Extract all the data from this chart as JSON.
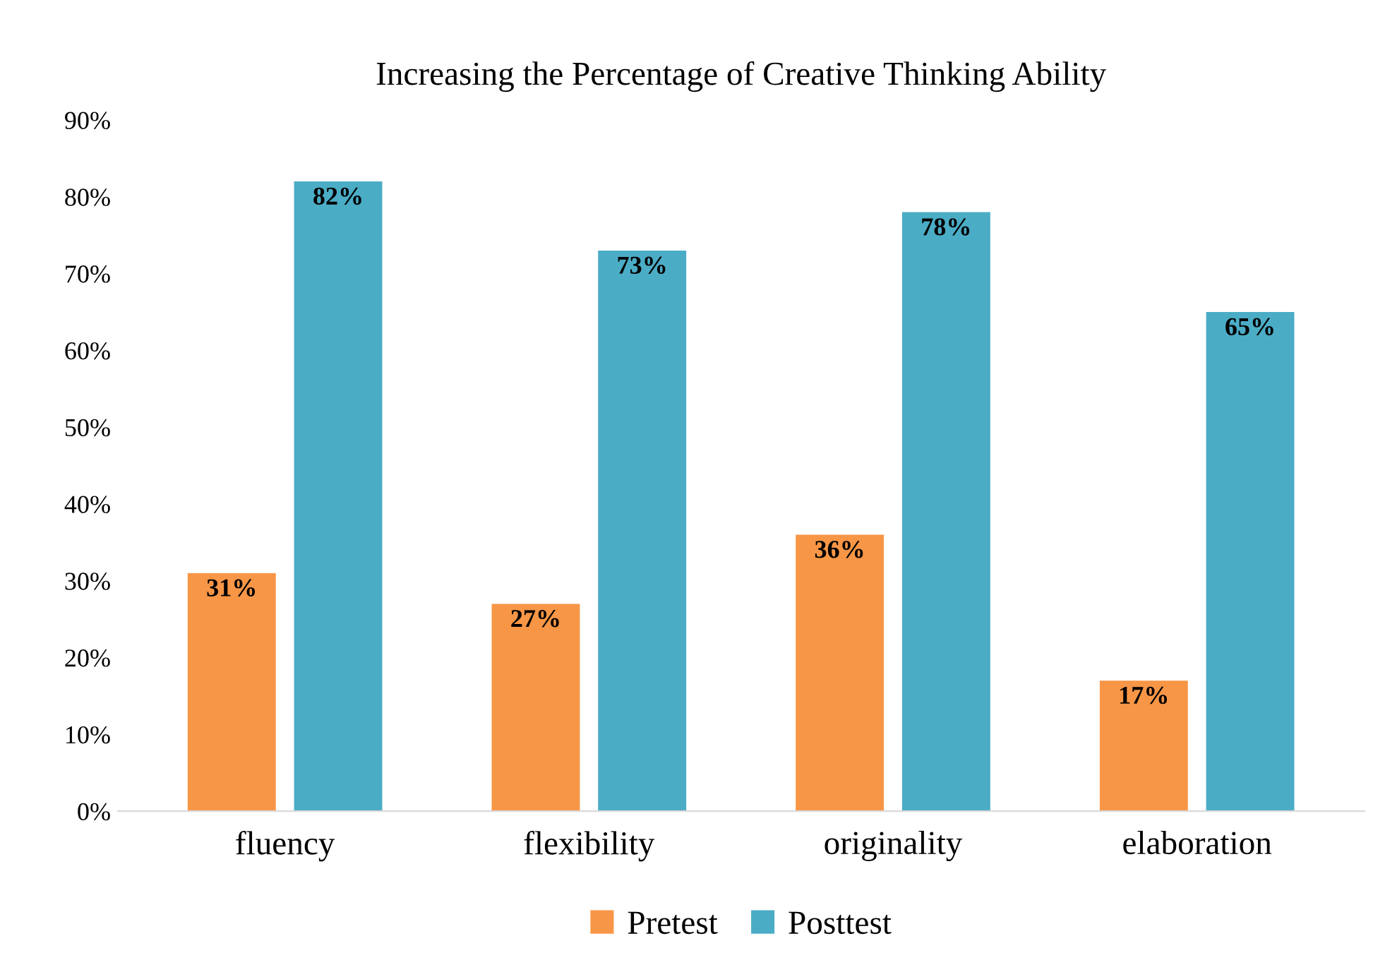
{
  "chart_data": {
    "type": "bar",
    "title": "Increasing the Percentage of Creative Thinking Ability",
    "categories": [
      "fluency",
      "flexibility",
      "originality",
      "elaboration"
    ],
    "series": [
      {
        "name": "Pretest",
        "color": "#f79646",
        "values": [
          31,
          27,
          36,
          17
        ],
        "value_labels": [
          "31%",
          "27%",
          "36%",
          "17%"
        ]
      },
      {
        "name": "Posttest",
        "color": "#4bacc6",
        "values": [
          82,
          73,
          78,
          65
        ],
        "value_labels": [
          "82%",
          "73%",
          "78%",
          "65%"
        ]
      }
    ],
    "ylim": [
      0,
      90
    ],
    "yticks": [
      {
        "value": 0,
        "label": "0%"
      },
      {
        "value": 10,
        "label": "10%"
      },
      {
        "value": 20,
        "label": "20%"
      },
      {
        "value": 30,
        "label": "30%"
      },
      {
        "value": 40,
        "label": "40%"
      },
      {
        "value": 50,
        "label": "50%"
      },
      {
        "value": 60,
        "label": "60%"
      },
      {
        "value": 70,
        "label": "70%"
      },
      {
        "value": 80,
        "label": "80%"
      },
      {
        "value": 90,
        "label": "90%"
      }
    ],
    "grid": false,
    "legend": "bottom"
  }
}
